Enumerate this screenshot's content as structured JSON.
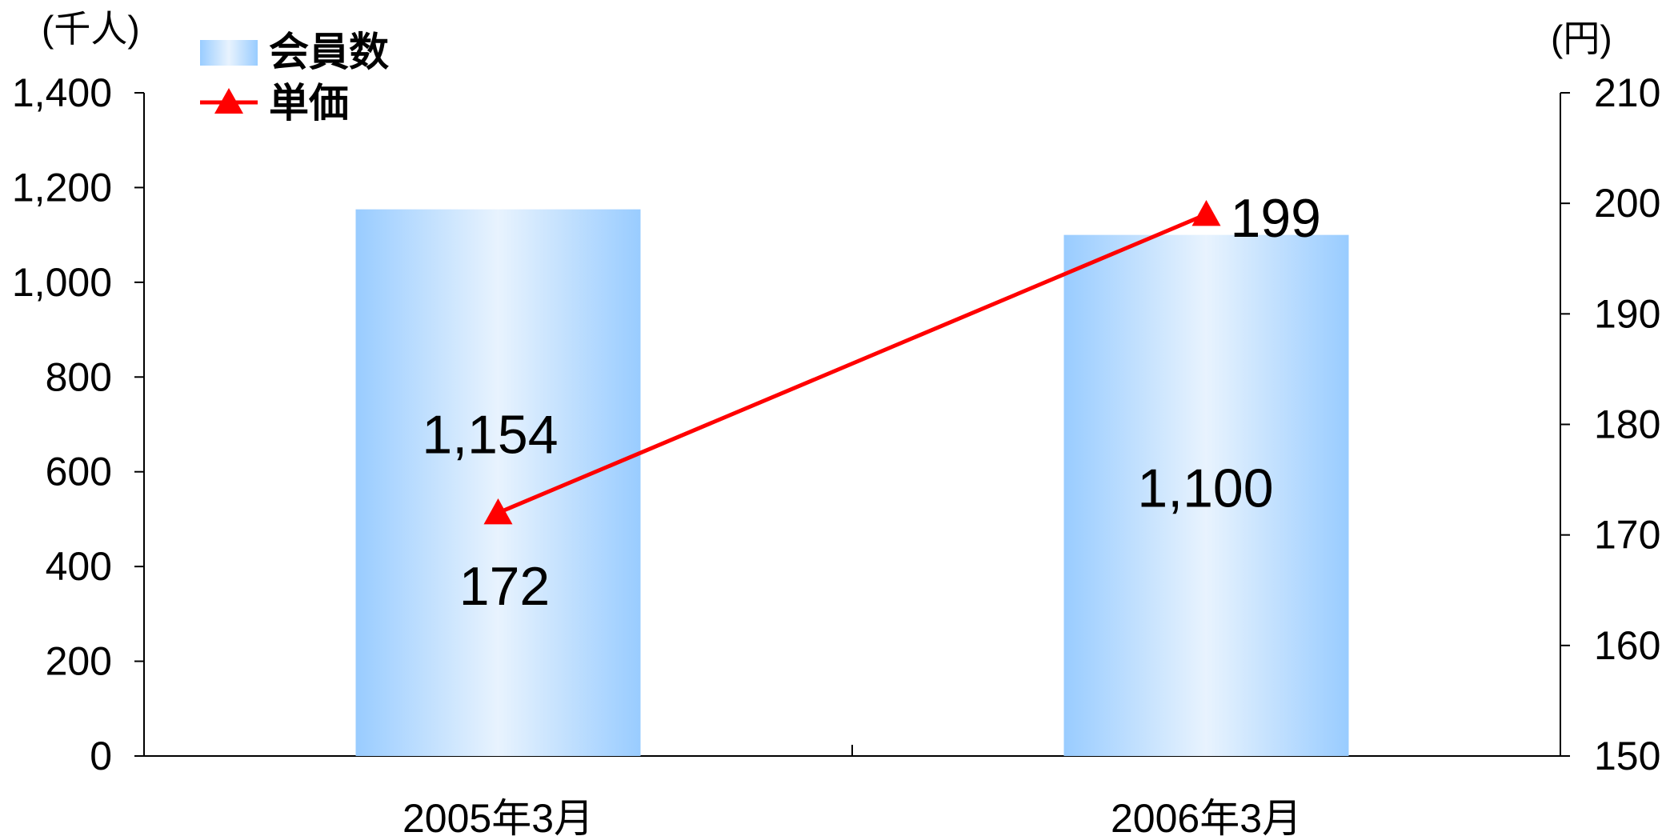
{
  "chart_data": {
    "type": "bar",
    "categories": [
      "2005年3月",
      "2006年3月"
    ],
    "series": [
      {
        "name": "会員数",
        "type": "bar",
        "axis": "left",
        "values": [
          1154,
          1100
        ],
        "labels": [
          "1,154",
          "1,100"
        ]
      },
      {
        "name": "単価",
        "type": "line",
        "axis": "right",
        "values": [
          172,
          199
        ],
        "labels": [
          "172",
          "199"
        ]
      }
    ],
    "y_left": {
      "unit": "(千人)",
      "min": 0,
      "max": 1400,
      "ticks": [
        "0",
        "200",
        "400",
        "600",
        "800",
        "1,000",
        "1,200",
        "1,400"
      ]
    },
    "y_right": {
      "unit": "(円)",
      "min": 150,
      "max": 210,
      "ticks": [
        "150",
        "160",
        "170",
        "180",
        "190",
        "200",
        "210"
      ]
    },
    "legend_position": "top-left",
    "colors": {
      "bar_edge": "#99CCFF",
      "bar_center": "#E8F3FE",
      "line": "#FF0000",
      "marker": "#FF0000",
      "axis": "#000000"
    }
  }
}
